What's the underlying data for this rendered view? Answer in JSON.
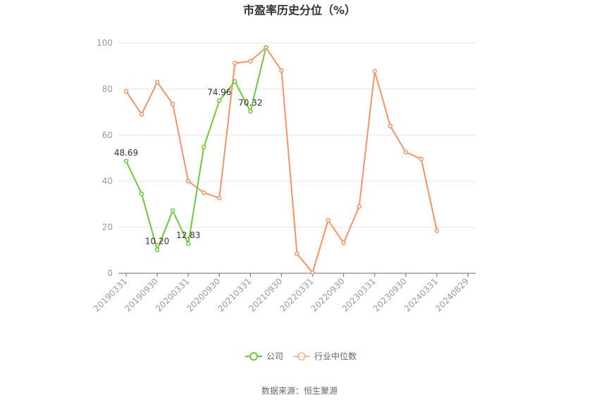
{
  "chart_data": {
    "type": "line",
    "title": "市盈率历史分位（%）",
    "source": "数据来源：恒生聚源",
    "ylim": [
      0,
      100
    ],
    "yticks": [
      0,
      20,
      40,
      60,
      80,
      100
    ],
    "x_ticks": [
      "20190331",
      "20190930",
      "20200331",
      "20200930",
      "20210331",
      "20210930",
      "20220331",
      "20220930",
      "20230331",
      "20230930",
      "20240331",
      "20240829"
    ],
    "x": [
      "20190331",
      "20190630",
      "20190930",
      "20191231",
      "20200331",
      "20200630",
      "20200930",
      "20201231",
      "20210331",
      "20210630",
      "20210930",
      "20211231",
      "20220331",
      "20220630",
      "20220930",
      "20221231",
      "20230331",
      "20230630",
      "20230930",
      "20231231",
      "20240331",
      "20240630",
      "20240829"
    ],
    "grid": true,
    "legend_position": "bottom",
    "series": [
      {
        "name": "公司",
        "color": "#6dc93a",
        "values": [
          48.69,
          34.5,
          10.2,
          27.2,
          12.83,
          54.8,
          74.96,
          83.3,
          70.32,
          98.0,
          null,
          null,
          null,
          null,
          null,
          null,
          null,
          null,
          null,
          null,
          null,
          null,
          null
        ],
        "labels": [
          {
            "index": 0,
            "text": "48.69"
          },
          {
            "index": 2,
            "text": "10.20"
          },
          {
            "index": 4,
            "text": "12.83"
          },
          {
            "index": 6,
            "text": "74.96"
          },
          {
            "index": 8,
            "text": "70.32"
          }
        ]
      },
      {
        "name": "行业中位数",
        "color": "#f29466",
        "values": [
          79.0,
          69.0,
          83.0,
          73.5,
          40.0,
          35.0,
          32.7,
          91.2,
          92.1,
          98.0,
          88.0,
          8.5,
          0.3,
          23.0,
          13.2,
          29.0,
          87.7,
          64.0,
          52.6,
          49.6,
          18.5,
          null,
          null
        ],
        "labels": []
      }
    ]
  }
}
